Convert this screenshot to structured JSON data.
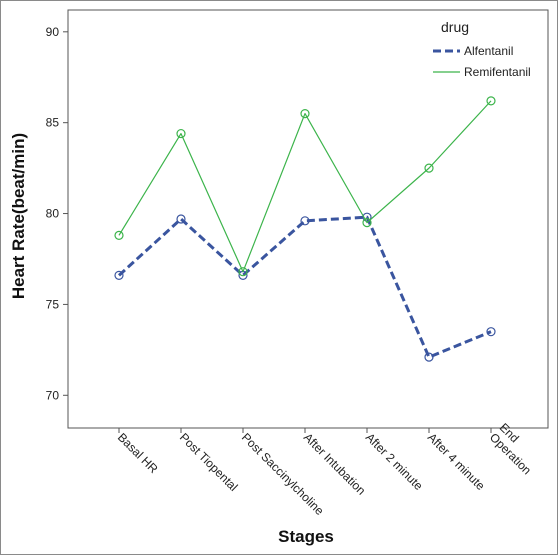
{
  "chart_data": {
    "type": "line",
    "title": "",
    "xlabel": "Stages",
    "ylabel": "Heart Rate(beat/min)",
    "categories": [
      "Basal HR",
      "Post Tiopental",
      "Post Saccinylcholine",
      "After Intubation",
      "After 2 minute",
      "After 4 minute",
      "End Operation"
    ],
    "category_lines": [
      [
        "Basal HR"
      ],
      [
        "Post Tiopental"
      ],
      [
        "Post Saccinylcholine"
      ],
      [
        "After Intubation"
      ],
      [
        "After 2 minute"
      ],
      [
        "After 4 minute"
      ],
      [
        "End",
        "Operation"
      ]
    ],
    "ylim": [
      68.2,
      91.2
    ],
    "yticks": [
      70,
      75,
      80,
      85,
      90
    ],
    "grid": false,
    "legend": {
      "title": "drug",
      "position": "top-right"
    },
    "series": [
      {
        "name": "Alfentanil",
        "values": [
          76.6,
          79.7,
          76.6,
          79.6,
          79.8,
          72.1,
          73.5
        ],
        "color": "#3a559f",
        "style": "dashed"
      },
      {
        "name": "Remifentanil",
        "values": [
          78.8,
          84.4,
          76.8,
          85.5,
          79.5,
          82.5,
          86.2
        ],
        "color": "#3cb44b",
        "style": "solid"
      }
    ]
  }
}
